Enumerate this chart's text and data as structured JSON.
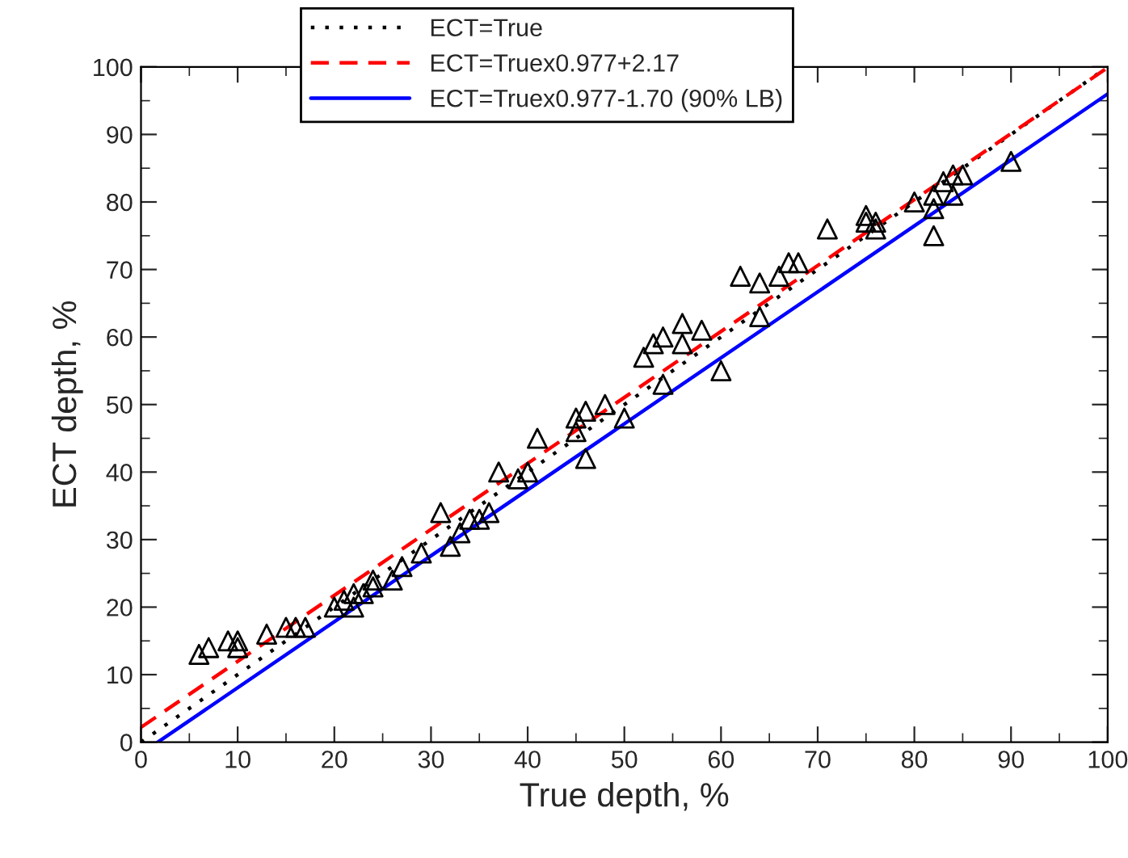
{
  "chart_data": {
    "type": "scatter",
    "xlabel": "True depth, %",
    "ylabel": "ECT depth, %",
    "xlim": [
      0,
      100
    ],
    "ylim": [
      0,
      100
    ],
    "xticks": [
      0,
      10,
      20,
      30,
      40,
      50,
      60,
      70,
      80,
      90,
      100
    ],
    "yticks": [
      0,
      10,
      20,
      30,
      40,
      50,
      60,
      70,
      80,
      90,
      100
    ],
    "grid": false,
    "legend": "top",
    "series": [
      {
        "type": "line",
        "name": "ECT=True",
        "color": "#000000",
        "line_style": "dotted",
        "marker": "none",
        "x": [
          0,
          100
        ],
        "values": [
          0,
          100
        ]
      },
      {
        "type": "line",
        "name": "ECT=Truex0.977+2.17",
        "color": "#ff0000",
        "line_style": "dashed",
        "marker": "none",
        "x": [
          0,
          100
        ],
        "values": [
          2.2,
          99.9
        ]
      },
      {
        "type": "line",
        "name": "ECT=Truex0.977-1.70 (90% LB)",
        "color": "#0000ff",
        "line_style": "solid",
        "marker": "none",
        "x": [
          1.74,
          100
        ],
        "values": [
          0,
          96
        ]
      },
      {
        "type": "scatter",
        "color": "#000000",
        "marker": "triangle",
        "x": [
          6,
          7,
          9,
          10,
          10,
          13,
          15,
          16,
          17,
          20,
          21,
          22,
          22,
          23,
          24,
          24,
          26,
          27,
          29,
          31,
          32,
          33,
          34,
          35,
          36,
          37,
          39,
          40,
          41,
          45,
          45,
          46,
          46,
          48,
          50,
          52,
          53,
          54,
          54,
          56,
          56,
          58,
          60,
          62,
          64,
          64,
          66,
          67,
          68,
          71,
          75,
          75,
          76,
          76,
          80,
          82,
          82,
          82,
          83,
          84,
          84,
          85,
          90
        ],
        "values": [
          13,
          14,
          15,
          15,
          14,
          16,
          17,
          17,
          17,
          20,
          21,
          22,
          20,
          22,
          24,
          23,
          24,
          26,
          28,
          34,
          29,
          31,
          33,
          33,
          34,
          40,
          39,
          40,
          45,
          48,
          46,
          49,
          42,
          50,
          48,
          57,
          59,
          53,
          60,
          62,
          59,
          61,
          55,
          69,
          68,
          63,
          69,
          71,
          71,
          76,
          78,
          77,
          76,
          77,
          80,
          79,
          75,
          81,
          83,
          84,
          81,
          84,
          86
        ]
      }
    ]
  }
}
